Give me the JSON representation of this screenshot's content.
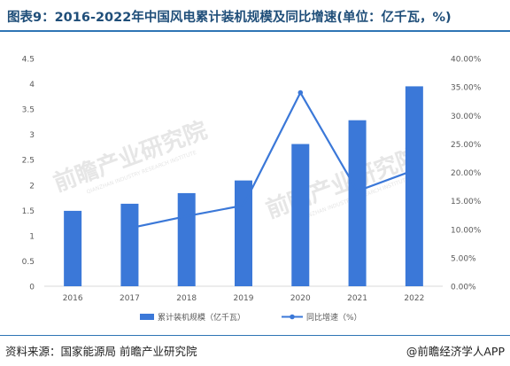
{
  "header": {
    "title": "图表9：2016-2022年中国风电累计装机规模及同比增速(单位：亿千瓦，%)"
  },
  "footer": {
    "source": "资料来源：国家能源局 前瞻产业研究院",
    "credit": "@前瞻经济学人APP"
  },
  "watermark": {
    "text": "前瞻产业研究院",
    "subtext": "QIANZHAN INDUSTRY RESEARCH INSTITUTE"
  },
  "colors": {
    "bar": "#3b78d8",
    "line": "#3b78d8",
    "axis_text": "#595959",
    "title": "#1f4e79",
    "rule": "#2f75b5"
  },
  "chart_data": {
    "type": "bar",
    "categories": [
      "2016",
      "2017",
      "2018",
      "2019",
      "2020",
      "2021",
      "2022"
    ],
    "series": [
      {
        "name": "累计装机规模（亿千瓦）",
        "type": "bar",
        "axis": "left",
        "values": [
          1.49,
          1.63,
          1.84,
          2.09,
          2.81,
          3.28,
          3.95
        ]
      },
      {
        "name": "同比增速（%）",
        "type": "line",
        "axis": "right",
        "values": [
          null,
          10.2,
          12.3,
          14.2,
          34.0,
          16.7,
          20.4
        ]
      }
    ],
    "ylim_left": [
      0,
      4.5
    ],
    "left_ticks": [
      "0",
      "0.5",
      "1",
      "1.5",
      "2",
      "2.5",
      "3",
      "3.5",
      "4",
      "4.5"
    ],
    "ylim_right": [
      0,
      40
    ],
    "right_ticks": [
      "0.00%",
      "5.00%",
      "10.00%",
      "15.00%",
      "20.00%",
      "25.00%",
      "30.00%",
      "35.00%",
      "40.00%"
    ],
    "grid": false,
    "legend_position": "bottom"
  }
}
